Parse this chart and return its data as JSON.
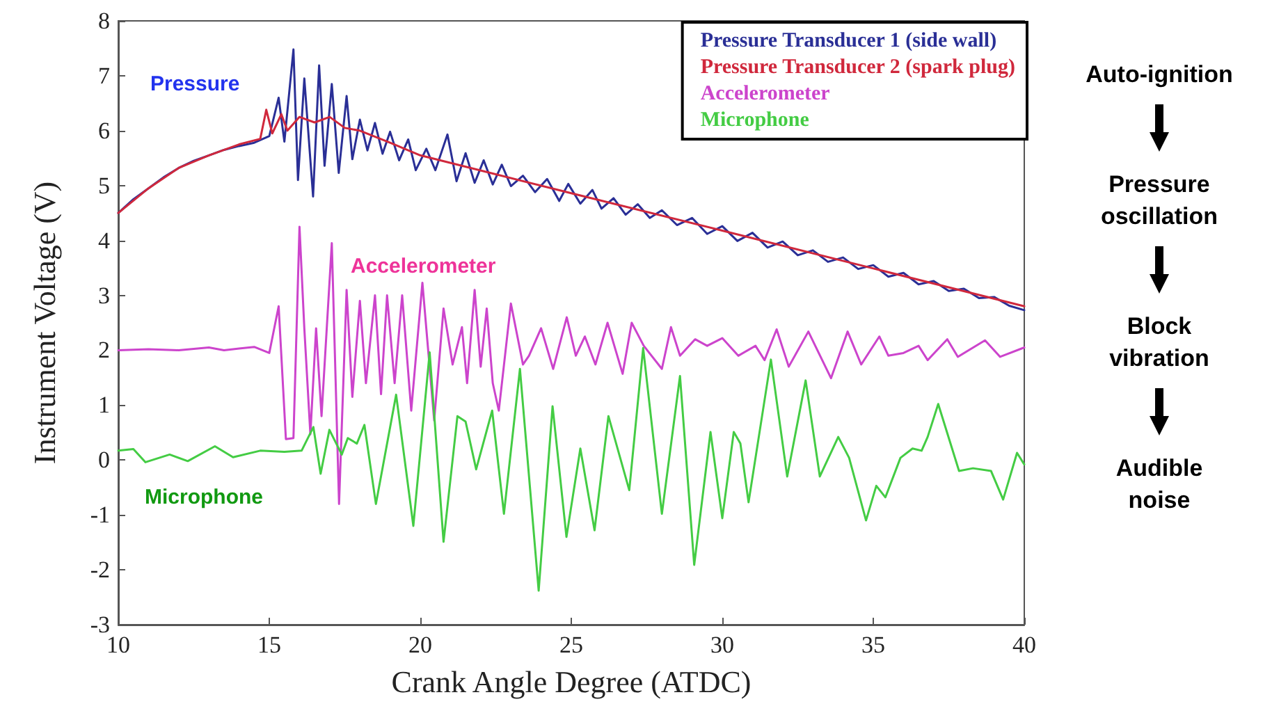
{
  "chart_data": {
    "type": "line",
    "xlabel": "Crank Angle Degree (ATDC)",
    "ylabel": "Instrument Voltage (V)",
    "xlim": [
      10,
      40
    ],
    "xticks": [
      10,
      15,
      20,
      25,
      30,
      35,
      40
    ],
    "ylim": [
      -3,
      8
    ],
    "yticks": [
      -3,
      -2,
      -1,
      0,
      1,
      2,
      3,
      4,
      5,
      6,
      7,
      8
    ],
    "grid": false,
    "legend": "top right",
    "marker": "none",
    "line_style": "solid",
    "series": [
      {
        "name": "Pressure Transducer 1 (side wall)",
        "color": "#2a2f96",
        "x": [
          10,
          10.5,
          11,
          11.5,
          12,
          12.5,
          13,
          13.5,
          14,
          14.5,
          15,
          15.31,
          15.5,
          15.8,
          15.95,
          16.16,
          16.45,
          16.65,
          16.83,
          17.07,
          17.3,
          17.56,
          17.75,
          18,
          18.25,
          18.5,
          18.75,
          19,
          19.3,
          19.6,
          19.85,
          20.2,
          20.5,
          20.9,
          21.2,
          21.5,
          21.8,
          22.1,
          22.4,
          22.7,
          23,
          23.4,
          23.8,
          24.2,
          24.6,
          24.9,
          25.3,
          25.7,
          26,
          26.4,
          26.8,
          27.2,
          27.6,
          28,
          28.5,
          29,
          29.5,
          30,
          30.5,
          31,
          31.5,
          32,
          32.5,
          33,
          33.5,
          34,
          34.5,
          35,
          35.5,
          36,
          36.5,
          37,
          37.5,
          38,
          38.5,
          39,
          39.5,
          40
        ],
        "values": [
          4.5,
          4.75,
          4.95,
          5.15,
          5.32,
          5.45,
          5.55,
          5.65,
          5.72,
          5.78,
          5.9,
          6.6,
          5.8,
          7.48,
          5.1,
          6.95,
          4.8,
          7.19,
          5.36,
          6.85,
          5.23,
          6.63,
          5.48,
          6.2,
          5.64,
          6.14,
          5.58,
          5.98,
          5.46,
          5.84,
          5.28,
          5.67,
          5.28,
          5.93,
          5.08,
          5.59,
          5.05,
          5.46,
          5.02,
          5.38,
          4.99,
          5.18,
          4.88,
          5.12,
          4.72,
          5.03,
          4.67,
          4.92,
          4.58,
          4.77,
          4.47,
          4.66,
          4.41,
          4.55,
          4.28,
          4.41,
          4.12,
          4.26,
          3.99,
          4.14,
          3.87,
          3.98,
          3.73,
          3.82,
          3.61,
          3.69,
          3.48,
          3.55,
          3.34,
          3.41,
          3.2,
          3.26,
          3.08,
          3.12,
          2.95,
          2.97,
          2.81,
          2.73
        ]
      },
      {
        "name": "Pressure Transducer 2 (spark plug)",
        "color": "#d0283c",
        "x": [
          10,
          11,
          12,
          13,
          14,
          14.7,
          14.9,
          15.1,
          15.4,
          15.6,
          16,
          16.5,
          17,
          17.5,
          18,
          19,
          20,
          25,
          30,
          35,
          40
        ],
        "values": [
          4.5,
          4.95,
          5.32,
          5.55,
          5.75,
          5.85,
          6.38,
          5.95,
          6.3,
          6,
          6.25,
          6.15,
          6.25,
          6.05,
          6,
          5.78,
          5.55,
          4.86,
          4.18,
          3.49,
          2.8
        ]
      },
      {
        "name": "Accelerometer",
        "color": "#cc44cc",
        "x": [
          10,
          11,
          12,
          13,
          13.5,
          14,
          14.5,
          15,
          15.31,
          15.55,
          15.8,
          16,
          16.16,
          16.36,
          16.55,
          16.73,
          17.07,
          17.31,
          17.56,
          17.75,
          18,
          18.2,
          18.5,
          18.7,
          18.9,
          19.15,
          19.4,
          19.7,
          20.07,
          20.46,
          20.77,
          21.07,
          21.38,
          21.55,
          21.8,
          22,
          22.2,
          22.4,
          22.6,
          23,
          23.4,
          23.6,
          24,
          24.4,
          24.85,
          25.15,
          25.45,
          25.8,
          26.2,
          26.7,
          27,
          27.4,
          28,
          28.3,
          28.6,
          29.1,
          29.5,
          30,
          30.53,
          31.1,
          31.4,
          31.8,
          32.2,
          32.85,
          33.6,
          34.15,
          34.6,
          35.2,
          35.5,
          36,
          36.5,
          36.8,
          37.45,
          37.8,
          38.7,
          39.2,
          40
        ],
        "values": [
          2,
          2.02,
          2,
          2.05,
          2,
          2.03,
          2.06,
          1.95,
          2.8,
          0.38,
          0.4,
          4.25,
          2.4,
          0.47,
          2.4,
          0.8,
          3.95,
          -0.8,
          3.1,
          1.15,
          2.9,
          1.4,
          3,
          1.2,
          3,
          1.4,
          3,
          0.9,
          3.23,
          0.72,
          2.76,
          1.74,
          2.42,
          1.4,
          3.1,
          1.7,
          2.76,
          1.4,
          0.9,
          2.85,
          1.74,
          1.9,
          2.4,
          1.66,
          2.6,
          1.9,
          2.25,
          1.74,
          2.5,
          1.57,
          2.5,
          2.08,
          1.66,
          2.42,
          1.9,
          2.2,
          2.08,
          2.22,
          1.9,
          2.08,
          1.82,
          2.38,
          1.7,
          2.34,
          1.49,
          2.34,
          1.74,
          2.25,
          1.9,
          1.95,
          2.08,
          1.82,
          2.2,
          1.88,
          2.18,
          1.88,
          2.05
        ]
      },
      {
        "name": "Microphone",
        "color": "#44cc44",
        "x": [
          10,
          10.5,
          10.9,
          11.7,
          12.3,
          13.2,
          13.8,
          14.7,
          15.5,
          16.07,
          16.46,
          16.7,
          16.99,
          17.4,
          17.6,
          17.9,
          18.15,
          18.53,
          19.2,
          19.77,
          20.31,
          20.77,
          21.23,
          21.5,
          21.85,
          22.38,
          22.77,
          23.3,
          23.92,
          24.38,
          24.84,
          25.3,
          25.77,
          26.23,
          26.92,
          27.38,
          28,
          28.6,
          29.07,
          29.61,
          30,
          30.38,
          30.6,
          30.87,
          31.61,
          32.15,
          32.76,
          33.23,
          33.84,
          34.2,
          34.76,
          35.1,
          35.4,
          35.9,
          36.3,
          36.6,
          36.8,
          37.15,
          37.84,
          38.3,
          38.9,
          39.3,
          39.76,
          40
        ],
        "values": [
          0.17,
          0.2,
          -0.04,
          0.1,
          -0.02,
          0.25,
          0.05,
          0.17,
          0.15,
          0.17,
          0.6,
          -0.25,
          0.55,
          0.1,
          0.4,
          0.3,
          0.64,
          -0.8,
          1.19,
          -1.2,
          1.96,
          -1.49,
          0.8,
          0.7,
          -0.17,
          0.9,
          -0.98,
          1.66,
          -2.38,
          0.98,
          -1.4,
          0.21,
          -1.28,
          0.8,
          -0.55,
          2.04,
          -0.98,
          1.53,
          -1.91,
          0.51,
          -1.06,
          0.51,
          0.3,
          -0.77,
          1.83,
          -0.3,
          1.45,
          -0.3,
          0.42,
          0.04,
          -1.1,
          -0.47,
          -0.68,
          0.04,
          0.21,
          0.17,
          0.42,
          1.02,
          -0.2,
          -0.15,
          -0.2,
          -0.72,
          0.13,
          -0.08
        ]
      }
    ],
    "annotations": [
      "Pressure",
      "Accelerometer",
      "Microphone",
      "Auto-ignition",
      "Pressure\noscillation",
      "Block\nvibration",
      "Audible\nnoise"
    ]
  }
}
